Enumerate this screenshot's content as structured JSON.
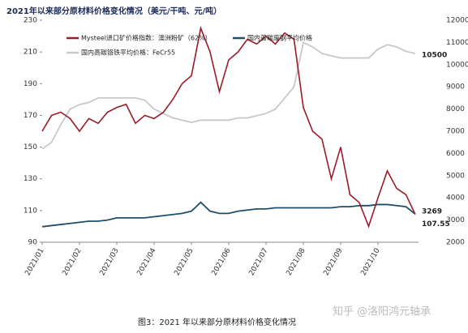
{
  "chart_data": {
    "type": "line",
    "title": "2021年以来部分原材料价格变化情况（美元/干吨、元/吨）",
    "categories": [
      "2021/01",
      null,
      null,
      null,
      "2021/02",
      null,
      null,
      null,
      "2021/03",
      null,
      null,
      null,
      "2021/04",
      null,
      null,
      null,
      "2021/05",
      null,
      null,
      null,
      "2021/06",
      null,
      null,
      null,
      "2021/07",
      null,
      null,
      null,
      "2021/08",
      null,
      null,
      null,
      "2021/09",
      null,
      null,
      null,
      "2021/10",
      null,
      null,
      null,
      null
    ],
    "series": [
      {
        "name": "Mysteel进口矿价格指数：澳洲粉矿（62%）",
        "color": "#9b1b2a",
        "axis": "y",
        "values": [
          160,
          170,
          172,
          168,
          160,
          168,
          165,
          172,
          175,
          177,
          165,
          170,
          168,
          172,
          180,
          190,
          195,
          225,
          210,
          185,
          205,
          210,
          218,
          215,
          220,
          215,
          222,
          218,
          175,
          160,
          155,
          130,
          150,
          120,
          115,
          100,
          118,
          135,
          124,
          120,
          107.55
        ]
      },
      {
        "name": "国内普碳废钢平均价格",
        "color": "#1f4e6b",
        "axis": "y2",
        "values": [
          2700,
          2750,
          2800,
          2850,
          2900,
          2950,
          2950,
          3000,
          3100,
          3100,
          3100,
          3100,
          3150,
          3200,
          3250,
          3300,
          3400,
          3800,
          3400,
          3300,
          3300,
          3400,
          3450,
          3500,
          3500,
          3550,
          3550,
          3550,
          3550,
          3550,
          3550,
          3550,
          3600,
          3600,
          3650,
          3650,
          3700,
          3700,
          3650,
          3600,
          3269
        ]
      },
      {
        "name": "国内高碳铬铁平均价格：FeCr55",
        "color": "#c8c8c8",
        "axis": "y2",
        "values": [
          6200,
          6500,
          7300,
          8000,
          8200,
          8300,
          8500,
          8500,
          8500,
          8500,
          8500,
          8400,
          8000,
          7800,
          7600,
          7500,
          7400,
          7500,
          7500,
          7500,
          7500,
          7600,
          7600,
          7700,
          7800,
          8000,
          8500,
          9000,
          11000,
          10800,
          10500,
          10400,
          10300,
          10300,
          10300,
          10300,
          10700,
          10900,
          10800,
          10600,
          10500
        ]
      }
    ],
    "ylim": [
      90,
      230
    ],
    "yticks": [
      90,
      110,
      130,
      150,
      170,
      190,
      210,
      230
    ],
    "y2lim": [
      2000,
      12000
    ],
    "y2ticks": [
      2000,
      3000,
      4000,
      5000,
      6000,
      7000,
      8000,
      9000,
      10000,
      11000,
      12000
    ],
    "caption": "图3：2021 年以来部分原材料价格变化情况",
    "watermark": "知乎 @洛阳鸿元轴承"
  }
}
